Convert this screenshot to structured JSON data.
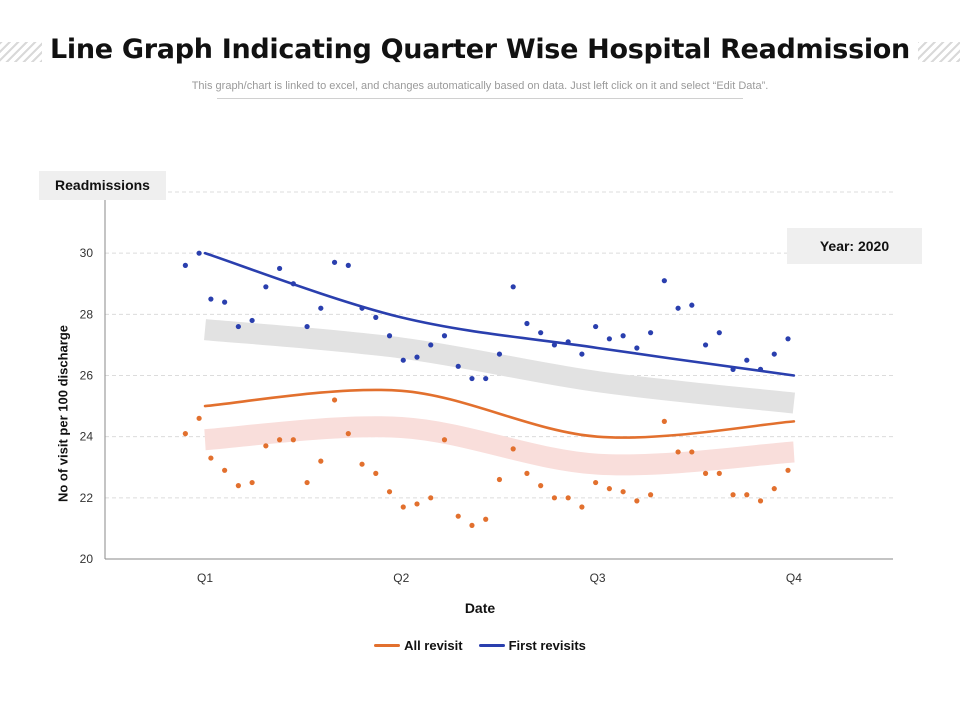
{
  "title": "Line Graph Indicating Quarter Wise Hospital Readmission",
  "subtitle": "This graph/chart is linked to excel, and changes automatically  based on data. Just left click on it and select “Edit Data”.",
  "readmissions_label": "Readmissions",
  "year_label": "Year: 2020",
  "colors": {
    "orange": "#E2702E",
    "blue": "#2A3FAE",
    "grey_band": "#E2E2E2",
    "pink_band": "#F9DEDB"
  },
  "chart_data": {
    "type": "line",
    "title": "",
    "xlabel": "Date",
    "ylabel": "No of visit per 100 discharge",
    "categories": [
      "Q1",
      "Q2",
      "Q3",
      "Q4"
    ],
    "xlim": [
      0.5,
      4.5
    ],
    "ylim": [
      20,
      32
    ],
    "yticks": [
      20,
      22,
      24,
      26,
      28,
      30
    ],
    "grid": true,
    "legend_position": "bottom",
    "series": [
      {
        "name": "All revisit",
        "color": "#E2702E",
        "x": [
          1,
          2,
          3,
          4
        ],
        "values": [
          25.0,
          25.5,
          24.0,
          24.5
        ]
      },
      {
        "name": "First revisits",
        "color": "#2A3FAE",
        "x": [
          1,
          2,
          3,
          4
        ],
        "values": [
          30.0,
          27.9,
          26.9,
          26.0
        ]
      }
    ],
    "bands": [
      {
        "name": "first-revisits-band",
        "color": "#E2E2E2",
        "x": [
          1,
          2,
          3,
          4
        ],
        "values": [
          27.5,
          26.9,
          25.8,
          25.1
        ]
      },
      {
        "name": "all-revisit-band",
        "color": "#F9DEDB",
        "x": [
          1,
          2,
          3,
          4
        ],
        "values": [
          23.9,
          24.3,
          23.1,
          23.5
        ]
      }
    ],
    "scatter": [
      {
        "name": "First revisits points",
        "color": "#2A3FAE",
        "points": [
          [
            0.9,
            29.6
          ],
          [
            0.97,
            30.0
          ],
          [
            1.03,
            28.5
          ],
          [
            1.1,
            28.4
          ],
          [
            1.17,
            27.6
          ],
          [
            1.24,
            27.8
          ],
          [
            1.31,
            28.9
          ],
          [
            1.38,
            29.5
          ],
          [
            1.45,
            29.0
          ],
          [
            1.52,
            27.6
          ],
          [
            1.59,
            28.2
          ],
          [
            1.66,
            29.7
          ],
          [
            1.73,
            29.6
          ],
          [
            1.8,
            28.2
          ],
          [
            1.87,
            27.9
          ],
          [
            1.94,
            27.3
          ],
          [
            2.01,
            26.5
          ],
          [
            2.08,
            26.6
          ],
          [
            2.15,
            27.0
          ],
          [
            2.22,
            27.3
          ],
          [
            2.29,
            26.3
          ],
          [
            2.36,
            25.9
          ],
          [
            2.43,
            25.9
          ],
          [
            2.5,
            26.7
          ],
          [
            2.57,
            28.9
          ],
          [
            2.64,
            27.7
          ],
          [
            2.71,
            27.4
          ],
          [
            2.78,
            27.0
          ],
          [
            2.85,
            27.1
          ],
          [
            2.92,
            26.7
          ],
          [
            2.99,
            27.6
          ],
          [
            3.06,
            27.2
          ],
          [
            3.13,
            27.3
          ],
          [
            3.2,
            26.9
          ],
          [
            3.27,
            27.4
          ],
          [
            3.34,
            29.1
          ],
          [
            3.41,
            28.2
          ],
          [
            3.48,
            28.3
          ],
          [
            3.55,
            27.0
          ],
          [
            3.62,
            27.4
          ],
          [
            3.69,
            26.2
          ],
          [
            3.76,
            26.5
          ],
          [
            3.83,
            26.2
          ],
          [
            3.9,
            26.7
          ],
          [
            3.97,
            27.2
          ]
        ]
      },
      {
        "name": "All revisit points",
        "color": "#E2702E",
        "points": [
          [
            0.9,
            24.1
          ],
          [
            0.97,
            24.6
          ],
          [
            1.03,
            23.3
          ],
          [
            1.1,
            22.9
          ],
          [
            1.17,
            22.4
          ],
          [
            1.24,
            22.5
          ],
          [
            1.31,
            23.7
          ],
          [
            1.38,
            23.9
          ],
          [
            1.45,
            23.9
          ],
          [
            1.52,
            22.5
          ],
          [
            1.59,
            23.2
          ],
          [
            1.66,
            25.2
          ],
          [
            1.73,
            24.1
          ],
          [
            1.8,
            23.1
          ],
          [
            1.87,
            22.8
          ],
          [
            1.94,
            22.2
          ],
          [
            2.01,
            21.7
          ],
          [
            2.08,
            21.8
          ],
          [
            2.15,
            22.0
          ],
          [
            2.22,
            23.9
          ],
          [
            2.29,
            21.4
          ],
          [
            2.36,
            21.1
          ],
          [
            2.43,
            21.3
          ],
          [
            2.5,
            22.6
          ],
          [
            2.57,
            23.6
          ],
          [
            2.64,
            22.8
          ],
          [
            2.71,
            22.4
          ],
          [
            2.78,
            22.0
          ],
          [
            2.85,
            22.0
          ],
          [
            2.92,
            21.7
          ],
          [
            2.99,
            22.5
          ],
          [
            3.06,
            22.3
          ],
          [
            3.13,
            22.2
          ],
          [
            3.2,
            21.9
          ],
          [
            3.27,
            22.1
          ],
          [
            3.34,
            24.5
          ],
          [
            3.41,
            23.5
          ],
          [
            3.48,
            23.5
          ],
          [
            3.55,
            22.8
          ],
          [
            3.62,
            22.8
          ],
          [
            3.69,
            22.1
          ],
          [
            3.76,
            22.1
          ],
          [
            3.83,
            21.9
          ],
          [
            3.9,
            22.3
          ],
          [
            3.97,
            22.9
          ]
        ]
      }
    ]
  }
}
